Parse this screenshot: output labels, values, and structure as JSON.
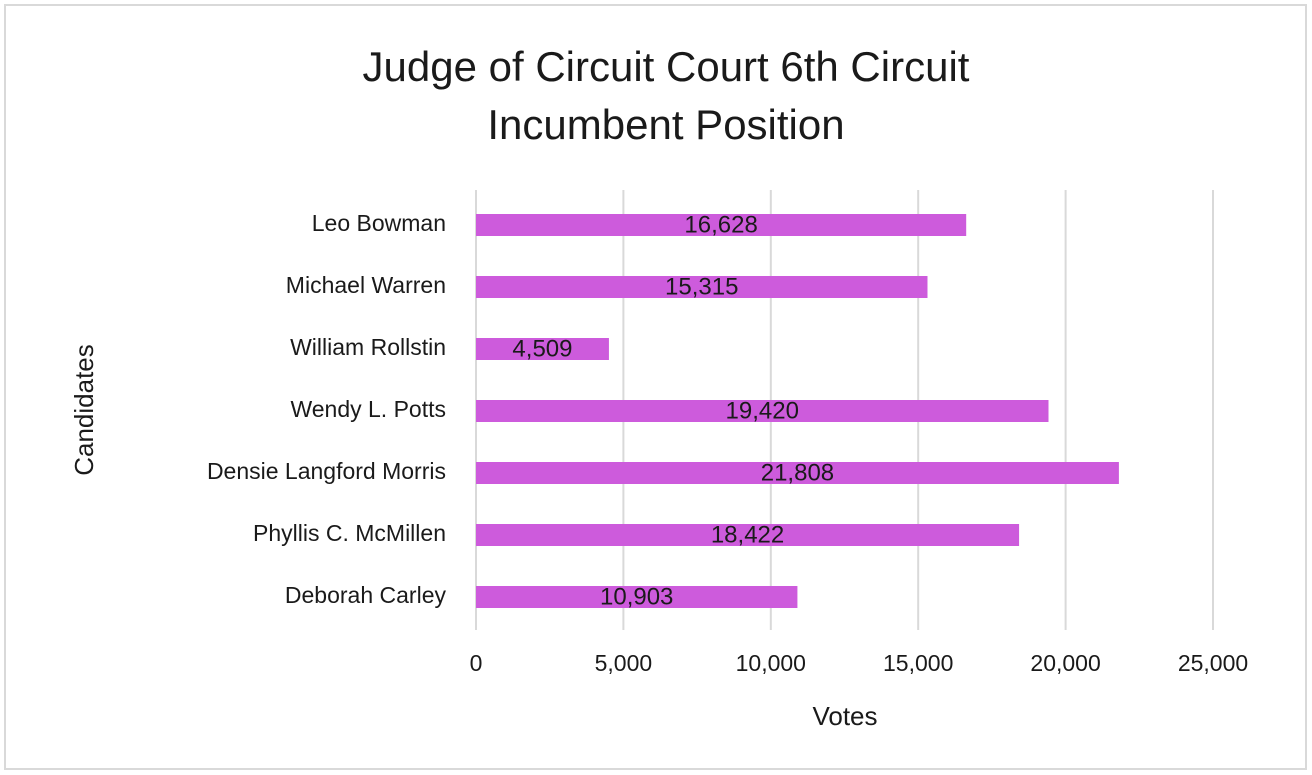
{
  "chart_data": {
    "type": "hbar",
    "title": "Judge of Circuit Court 6th Circuit Incumbent Position",
    "x_label": "Votes",
    "y_label": "Candidates",
    "categories": [
      "Leo Bowman",
      "Michael Warren",
      "William Rollstin",
      "Wendy L. Potts",
      "Densie Langford Morris",
      "Phyllis C. McMillen",
      "Deborah Carley"
    ],
    "values": [
      16628,
      15315,
      4509,
      19420,
      21808,
      18422,
      10903
    ],
    "value_labels": [
      "16,628",
      "15,315",
      "4,509",
      "19,420",
      "21,808",
      "18,422",
      "10,903"
    ],
    "color": "#cd5bdc",
    "xlim": [
      0,
      25000
    ],
    "xticks": [
      0,
      {
        "value": 5000,
        "label": "5,000"
      },
      {
        "value": 10000,
        "label": "10,000"
      },
      {
        "value": 15000,
        "label": "15,000"
      },
      {
        "value": 20000,
        "label": "20,000"
      },
      {
        "value": 25000,
        "label": "25,000"
      }
    ],
    "grid": true
  }
}
